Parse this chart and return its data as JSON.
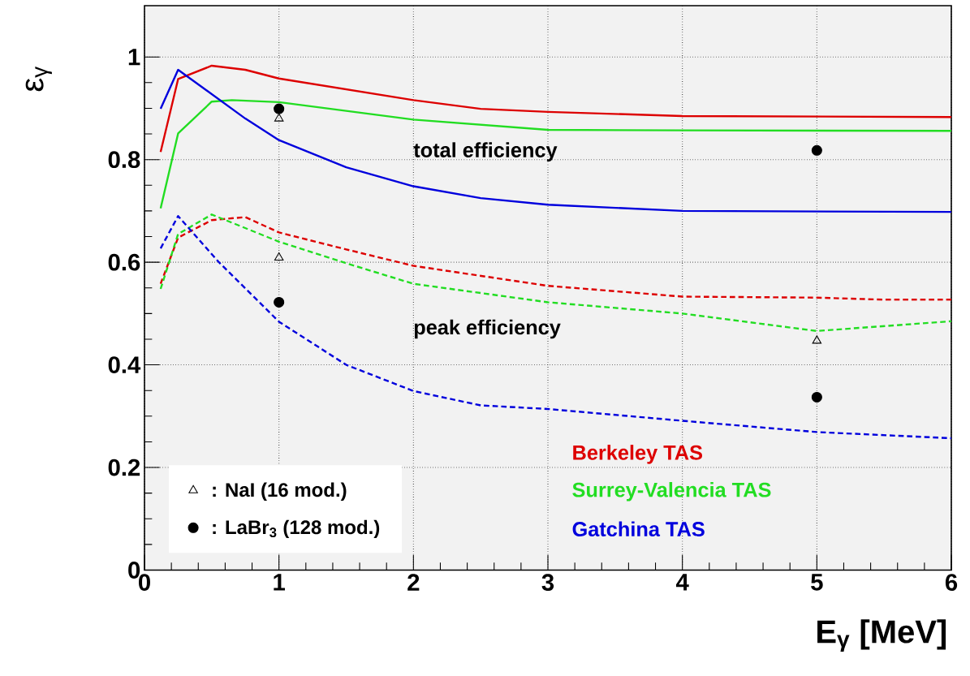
{
  "chart_data": {
    "type": "line",
    "xlabel": "E$_{γ}$ [MeV]",
    "ylabel": "ε$_{γ}$",
    "xlim": [
      0,
      6
    ],
    "ylim": [
      0,
      1.1
    ],
    "xticks": [
      0,
      1,
      2,
      3,
      4,
      5,
      6
    ],
    "yticks": [
      0,
      0.2,
      0.4,
      0.6,
      0.8,
      1
    ],
    "grid": true,
    "legend": "bottom left",
    "annotations": [
      "total efficiency",
      "peak efficiency"
    ],
    "series": [
      {
        "name": "Berkeley TAS",
        "color": "#dd0000",
        "line_style": "solid",
        "x": [
          0.12,
          0.25,
          0.5,
          0.75,
          1,
          2,
          2.5,
          3,
          4,
          6
        ],
        "values": [
          0.815,
          0.957,
          0.983,
          0.975,
          0.958,
          0.916,
          0.899,
          0.893,
          0.885,
          0.883
        ]
      },
      {
        "name": "Surrey-Valencia TAS",
        "color": "#22dd22",
        "line_style": "solid",
        "x": [
          0.12,
          0.25,
          0.5,
          0.65,
          1,
          2,
          3,
          4,
          6
        ],
        "values": [
          0.705,
          0.851,
          0.913,
          0.916,
          0.912,
          0.878,
          0.858,
          0.857,
          0.856
        ]
      },
      {
        "name": "Gatchina TAS",
        "color": "#0000dd",
        "line_style": "solid",
        "x": [
          0.12,
          0.25,
          0.75,
          1,
          1.5,
          2,
          2.5,
          3,
          4,
          6
        ],
        "values": [
          0.899,
          0.975,
          0.88,
          0.838,
          0.785,
          0.748,
          0.725,
          0.712,
          0.7,
          0.698
        ]
      },
      {
        "color": "#dd0000",
        "line_style": "dashed",
        "x": [
          0.12,
          0.25,
          0.5,
          0.75,
          1,
          1.5,
          2,
          3,
          4,
          5,
          5.5,
          6
        ],
        "values": [
          0.558,
          0.648,
          0.682,
          0.688,
          0.658,
          0.625,
          0.593,
          0.554,
          0.533,
          0.531,
          0.527,
          0.527
        ]
      },
      {
        "color": "#22dd22",
        "line_style": "dashed",
        "x": [
          0.12,
          0.25,
          0.5,
          1,
          1.5,
          2,
          3,
          4,
          5,
          6
        ],
        "values": [
          0.548,
          0.655,
          0.693,
          0.64,
          0.598,
          0.558,
          0.522,
          0.5,
          0.466,
          0.485
        ]
      },
      {
        "color": "#0000dd",
        "line_style": "dashed",
        "x": [
          0.12,
          0.25,
          0.55,
          1,
          1.5,
          2,
          2.5,
          3,
          4,
          5,
          6
        ],
        "values": [
          0.627,
          0.69,
          0.601,
          0.484,
          0.4,
          0.349,
          0.321,
          0.314,
          0.291,
          0.269,
          0.257
        ]
      },
      {
        "name": ": NaI (16 mod.)",
        "type": "scatter",
        "marker": "triangle",
        "color": "#000000",
        "x": [
          1,
          1,
          5
        ],
        "values": [
          0.88,
          0.609,
          0.447
        ]
      },
      {
        "name": ": LaBr$_{3}$ (128 mod.)",
        "type": "scatter",
        "marker": "circle",
        "color": "#000000",
        "x": [
          1,
          1,
          5,
          5
        ],
        "values": [
          0.899,
          0.522,
          0.818,
          0.337
        ]
      }
    ]
  }
}
